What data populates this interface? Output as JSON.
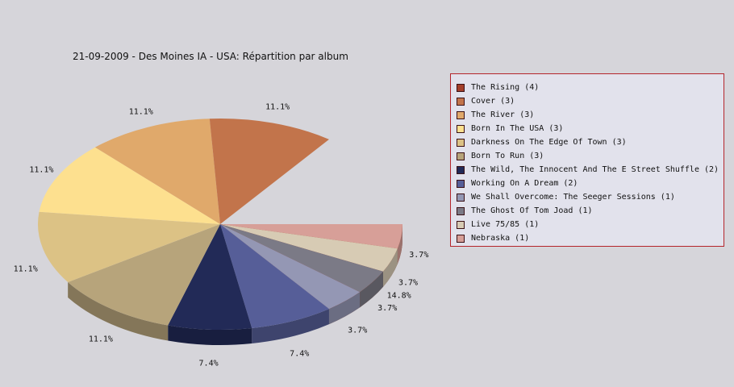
{
  "chart_data": {
    "type": "pie",
    "title": "21-09-2009 - Des Moines IA - USA:  Répartition par album",
    "slices": [
      {
        "label": "The Rising (4)",
        "value": 4,
        "percent_label": "14.8%",
        "color": "#a33f2a"
      },
      {
        "label": "Cover (3)",
        "value": 3,
        "percent_label": "11.1%",
        "color": "#c2744b"
      },
      {
        "label": "The River (3)",
        "value": 3,
        "percent_label": "11.1%",
        "color": "#e0a96b"
      },
      {
        "label": "Born In The USA (3)",
        "value": 3,
        "percent_label": "11.1%",
        "color": "#fde08f"
      },
      {
        "label": "Darkness On The Edge Of Town (3)",
        "value": 3,
        "percent_label": "11.1%",
        "color": "#dcc285"
      },
      {
        "label": "Born To Run (3)",
        "value": 3,
        "percent_label": "11.1%",
        "color": "#b7a47b"
      },
      {
        "label": "The Wild, The Innocent And The E Street Shuffle (2)",
        "value": 2,
        "percent_label": "7.4%",
        "color": "#222a57"
      },
      {
        "label": "Working On A Dream (2)",
        "value": 2,
        "percent_label": "7.4%",
        "color": "#565e98"
      },
      {
        "label": "We Shall Overcome: The Seeger Sessions (1)",
        "value": 1,
        "percent_label": "3.7%",
        "color": "#9497b4"
      },
      {
        "label": "The Ghost Of Tom Joad (1)",
        "value": 1,
        "percent_label": "3.7%",
        "color": "#7b7a86"
      },
      {
        "label": "Live 75/85 (1)",
        "value": 1,
        "percent_label": "3.7%",
        "color": "#d7cbb4"
      },
      {
        "label": "Nebraska (1)",
        "value": 1,
        "percent_label": "3.7%",
        "color": "#d79f98"
      }
    ],
    "legend_position": "right"
  }
}
